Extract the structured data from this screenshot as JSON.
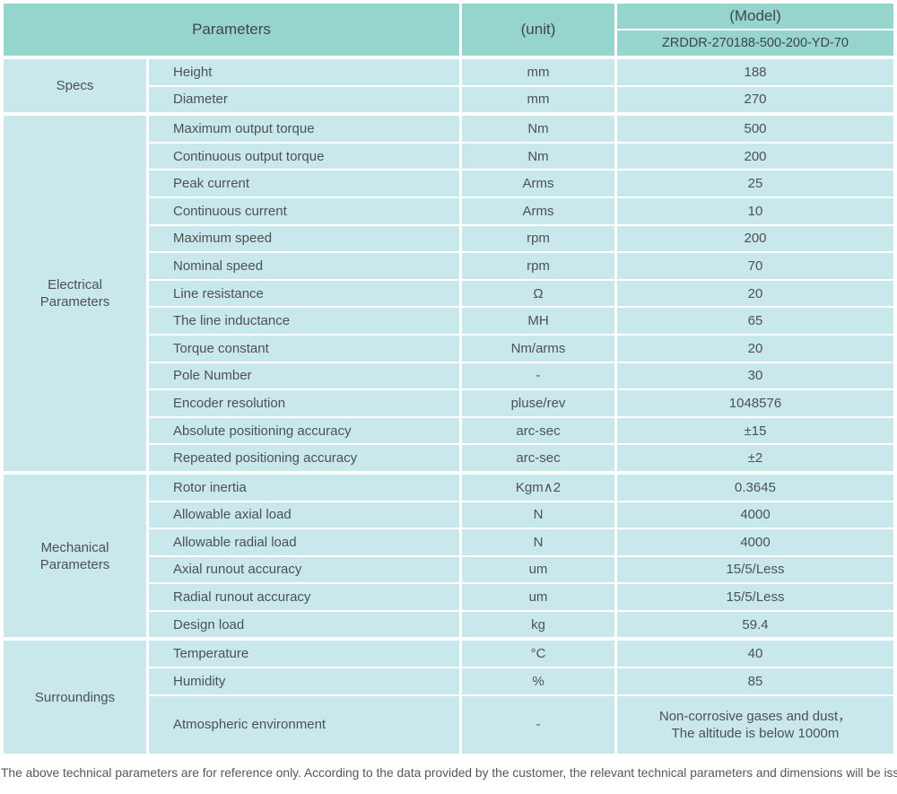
{
  "header": {
    "parameters_label": "Parameters",
    "unit_label": "(unit)",
    "model_label": "(Model)",
    "model_value": "ZRDDR-270188-500-200-YD-70"
  },
  "sections": [
    {
      "id": "specs",
      "group": "Specs",
      "rows": [
        {
          "param": "Height",
          "unit": "mm",
          "value": "188"
        },
        {
          "param": "Diameter",
          "unit": "mm",
          "value": "270"
        }
      ]
    },
    {
      "id": "electrical-parameters",
      "group": "Electrical\nParameters",
      "rows": [
        {
          "param": "Maximum output torque",
          "unit": "Nm",
          "value": "500"
        },
        {
          "param": "Continuous output torque",
          "unit": "Nm",
          "value": "200"
        },
        {
          "param": "Peak current",
          "unit": "Arms",
          "value": "25"
        },
        {
          "param": "Continuous current",
          "unit": "Arms",
          "value": "10"
        },
        {
          "param": "Maximum speed",
          "unit": "rpm",
          "value": "200"
        },
        {
          "param": "Nominal speed",
          "unit": "rpm",
          "value": "70"
        },
        {
          "param": "Line resistance",
          "unit": "Ω",
          "value": "20"
        },
        {
          "param": "The line inductance",
          "unit": "MH",
          "value": "65"
        },
        {
          "param": "Torque constant",
          "unit": "Nm/arms",
          "value": "20"
        },
        {
          "param": "Pole Number",
          "unit": "-",
          "value": "30"
        },
        {
          "param": "Encoder resolution",
          "unit": "pluse/rev",
          "value": "1048576"
        },
        {
          "param": "Absolute positioning accuracy",
          "unit": "arc-sec",
          "value": "±15"
        },
        {
          "param": "Repeated positioning accuracy",
          "unit": "arc-sec",
          "value": "±2"
        }
      ]
    },
    {
      "id": "mechanical-parameters",
      "group": "Mechanical\nParameters",
      "rows": [
        {
          "param": "Rotor inertia",
          "unit": "Kgm∧2",
          "value": "0.3645"
        },
        {
          "param": "Allowable axial load",
          "unit": "N",
          "value": "4000"
        },
        {
          "param": "Allowable radial load",
          "unit": "N",
          "value": "4000"
        },
        {
          "param": "Axial runout accuracy",
          "unit": "um",
          "value": "15/5/Less"
        },
        {
          "param": "Radial runout accuracy",
          "unit": "um",
          "value": "15/5/Less"
        },
        {
          "param": "Design load",
          "unit": "kg",
          "value": "59.4"
        }
      ]
    },
    {
      "id": "surroundings",
      "group": "Surroundings",
      "rows": [
        {
          "param": "Temperature",
          "unit": "°C",
          "value": "40"
        },
        {
          "param": "Humidity",
          "unit": "%",
          "value": "85"
        },
        {
          "param": "Atmospheric environment",
          "unit": "-",
          "value": "Non-corrosive gases and dust，\nThe altitude is below 1000m",
          "tall": true
        }
      ]
    }
  ],
  "footer_note": "The above technical parameters are for reference only. According to the data provided by the customer, the relevant technical parameters and dimensions will be issued.",
  "colors": {
    "header_bg": "#95d5ce",
    "cell_bg": "#c9e8ec",
    "header_text": "#3e4649",
    "cell_text": "#4b5256"
  }
}
